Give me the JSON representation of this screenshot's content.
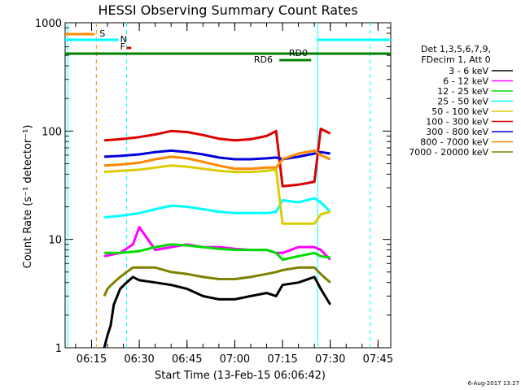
{
  "chart_data": {
    "type": "line",
    "title": "HESSI Observing Summary Count Rates",
    "xlabel": "Start Time (13-Feb-15 06:06:42)",
    "ylabel": "Count Rate (s⁻¹ detector⁻¹)",
    "y_scale": "log",
    "ylim": [
      1,
      1000
    ],
    "xlim": [
      "06:06:42",
      "07:49:00"
    ],
    "x_ticks": [
      "06:15",
      "06:30",
      "06:45",
      "07:00",
      "07:15",
      "07:30",
      "07:45"
    ],
    "y_ticks": [
      "1",
      "10",
      "100",
      "1000"
    ],
    "grid": false,
    "legend_position": "right",
    "legend_header": [
      "Det 1,3,5,6,7,9,",
      "FDecim 1, Att 0"
    ],
    "series": [
      {
        "name": "3 - 6 keV",
        "color": "#000000",
        "x": [
          "06:10",
          "06:12",
          "06:14",
          "06:16",
          "06:18",
          "06:19",
          "06:20",
          "06:21",
          "06:22",
          "06:24",
          "06:26",
          "06:28",
          "06:30",
          "06:35",
          "06:40",
          "06:45",
          "06:50",
          "06:55",
          "07:00",
          "07:05",
          "07:10",
          "07:13",
          "07:15",
          "07:20",
          "07:25",
          "07:27",
          "07:30"
        ],
        "values": [
          null,
          null,
          null,
          null,
          null,
          1.0,
          1.3,
          1.6,
          2.5,
          3.5,
          4.0,
          4.5,
          4.2,
          4.0,
          3.8,
          3.5,
          3.0,
          2.8,
          2.8,
          3.0,
          3.2,
          3.0,
          3.8,
          4.0,
          4.5,
          3.5,
          2.5
        ]
      },
      {
        "name": "6 - 12 keV",
        "color": "#ff00ff",
        "x": [
          "06:19",
          "06:24",
          "06:28",
          "06:30",
          "06:35",
          "06:40",
          "06:45",
          "06:50",
          "06:55",
          "07:00",
          "07:05",
          "07:10",
          "07:13",
          "07:15",
          "07:20",
          "07:25",
          "07:27",
          "07:30"
        ],
        "values": [
          7.0,
          7.5,
          9.0,
          13.0,
          8.0,
          8.5,
          9.0,
          8.5,
          8.5,
          8.2,
          8.0,
          8.0,
          7.5,
          7.5,
          8.5,
          8.5,
          8.0,
          6.5
        ]
      },
      {
        "name": "12 - 25 keV",
        "color": "#00dd00",
        "x": [
          "06:19",
          "06:24",
          "06:30",
          "06:35",
          "06:40",
          "06:45",
          "06:50",
          "06:55",
          "07:00",
          "07:05",
          "07:10",
          "07:13",
          "07:15",
          "07:20",
          "07:25",
          "07:27",
          "07:30"
        ],
        "values": [
          7.5,
          7.5,
          7.8,
          8.5,
          9.0,
          8.8,
          8.5,
          8.2,
          8.0,
          8.0,
          8.0,
          7.5,
          6.5,
          7.0,
          7.5,
          7.0,
          6.8
        ]
      },
      {
        "name": "25 - 50 keV",
        "color": "#00ffff",
        "x": [
          "06:19",
          "06:24",
          "06:30",
          "06:35",
          "06:40",
          "06:45",
          "06:50",
          "06:55",
          "07:00",
          "07:05",
          "07:10",
          "07:13",
          "07:15",
          "07:20",
          "07:25",
          "07:27",
          "07:30"
        ],
        "values": [
          16,
          16.5,
          17.5,
          19,
          20.5,
          20,
          19,
          18,
          17.5,
          17.5,
          17.5,
          18,
          23,
          22,
          24,
          22,
          18
        ]
      },
      {
        "name": "50 - 100 keV",
        "color": "#ddcc00",
        "x": [
          "06:19",
          "06:24",
          "06:30",
          "06:35",
          "06:40",
          "06:45",
          "06:50",
          "06:55",
          "07:00",
          "07:05",
          "07:10",
          "07:13",
          "07:15",
          "07:20",
          "07:25",
          "07:27",
          "07:30"
        ],
        "values": [
          42,
          43,
          44,
          46,
          48,
          47,
          45,
          43,
          42,
          42,
          43,
          44,
          14,
          14,
          14,
          17,
          18
        ]
      },
      {
        "name": "100 - 300 keV",
        "color": "#dd0000",
        "x": [
          "06:19",
          "06:24",
          "06:30",
          "06:35",
          "06:40",
          "06:45",
          "06:50",
          "06:55",
          "07:00",
          "07:05",
          "07:10",
          "07:13",
          "07:15",
          "07:20",
          "07:25",
          "07:27",
          "07:30"
        ],
        "values": [
          82,
          84,
          88,
          93,
          100,
          98,
          92,
          85,
          82,
          84,
          90,
          100,
          31,
          32,
          34,
          105,
          95
        ]
      },
      {
        "name": "300 - 800 keV",
        "color": "#0000dd",
        "x": [
          "06:19",
          "06:24",
          "06:30",
          "06:35",
          "06:40",
          "06:45",
          "06:50",
          "06:55",
          "07:00",
          "07:05",
          "07:10",
          "07:13",
          "07:15",
          "07:20",
          "07:25",
          "07:27",
          "07:30"
        ],
        "values": [
          58,
          59,
          61,
          64,
          66,
          64,
          61,
          57,
          55,
          55,
          56,
          57,
          55,
          58,
          62,
          64,
          62
        ]
      },
      {
        "name": "800 - 7000 keV",
        "color": "#ff8800",
        "x": [
          "06:19",
          "06:24",
          "06:30",
          "06:35",
          "06:40",
          "06:45",
          "06:50",
          "06:55",
          "07:00",
          "07:05",
          "07:10",
          "07:13",
          "07:15",
          "07:20",
          "07:25",
          "07:27",
          "07:30"
        ],
        "values": [
          48,
          49,
          51,
          55,
          58,
          56,
          52,
          48,
          45,
          45,
          46,
          46,
          55,
          62,
          66,
          60,
          55
        ]
      },
      {
        "name": "7000 - 20000 keV",
        "color": "#808000",
        "x": [
          "06:19",
          "06:20",
          "06:22",
          "06:24",
          "06:26",
          "06:28",
          "06:30",
          "06:35",
          "06:40",
          "06:45",
          "06:50",
          "06:55",
          "07:00",
          "07:05",
          "07:10",
          "07:13",
          "07:15",
          "07:20",
          "07:25",
          "07:27",
          "07:30"
        ],
        "values": [
          3.0,
          3.5,
          4.0,
          4.5,
          5.0,
          5.5,
          5.5,
          5.5,
          5.0,
          4.8,
          4.5,
          4.3,
          4.3,
          4.5,
          4.8,
          5.0,
          5.2,
          5.5,
          5.5,
          4.8,
          4.0
        ]
      }
    ],
    "annotations": {
      "S": {
        "label": "S",
        "color": "#ff8800"
      },
      "N": {
        "label": "N",
        "color": "#00ffff"
      },
      "F": {
        "label": "F",
        "color": "#dd0000"
      },
      "RD0": {
        "label": "RD0",
        "color": "#008000"
      },
      "RD6": {
        "label": "RD6",
        "color": "#008000"
      }
    },
    "vertical_markers": [
      {
        "time": "06:07:30",
        "color": "#00ffff",
        "style": "solid"
      },
      {
        "time": "06:16:30",
        "color": "#ff8800",
        "style": "dashed"
      },
      {
        "time": "06:26:00",
        "color": "#00ffff",
        "style": "dashed"
      },
      {
        "time": "07:26:00",
        "color": "#00ffff",
        "style": "solid"
      },
      {
        "time": "07:42:30",
        "color": "#00ffff",
        "style": "dashed"
      }
    ]
  },
  "timestamp": "6-Aug-2017 13:27"
}
